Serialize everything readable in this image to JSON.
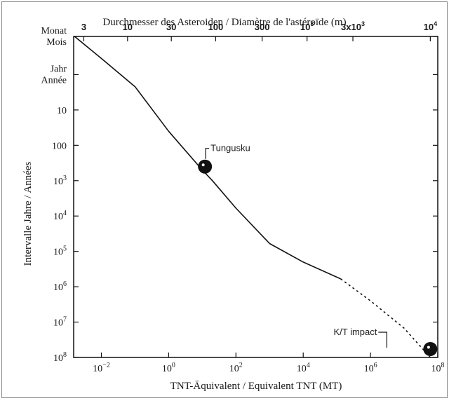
{
  "chart_data": {
    "type": "line",
    "title": "Durchmesser des Asteroiden / Diamètre de l'astéroïde (m)",
    "xlabel": "TNT-Äquivalent / Equivalent TNT (MT)",
    "ylabel": "Intervalle Jahre / Années",
    "x_scale": "log",
    "y_scale": "log",
    "xlim": [
      0.0015,
      100000000
    ],
    "ylim": [
      0.0833,
      100000000
    ],
    "x_ticks": [
      {
        "value": 0.01,
        "label": "10",
        "exp": "−2"
      },
      {
        "value": 1,
        "label": "10",
        "exp": "0"
      },
      {
        "value": 100,
        "label": "10",
        "exp": "2"
      },
      {
        "value": 10000,
        "label": "10",
        "exp": "4"
      },
      {
        "value": 1000000,
        "label": "10",
        "exp": "6"
      },
      {
        "value": 100000000,
        "label": "10",
        "exp": "8"
      }
    ],
    "y_ticks": [
      {
        "value": 0.0833,
        "label": "Monat",
        "label2": "Mois",
        "exp": ""
      },
      {
        "value": 1,
        "label": "Jahr",
        "label2": "Année",
        "exp": ""
      },
      {
        "value": 10,
        "label": "10",
        "label2": "",
        "exp": ""
      },
      {
        "value": 100,
        "label": "100",
        "label2": "",
        "exp": ""
      },
      {
        "value": 1000,
        "label": "10",
        "label2": "",
        "exp": "3"
      },
      {
        "value": 10000,
        "label": "10",
        "label2": "",
        "exp": "4"
      },
      {
        "value": 100000,
        "label": "10",
        "label2": "",
        "exp": "5"
      },
      {
        "value": 1000000,
        "label": "10",
        "label2": "",
        "exp": "6"
      },
      {
        "value": 10000000,
        "label": "10",
        "label2": "",
        "exp": "7"
      },
      {
        "value": 100000000,
        "label": "10",
        "label2": "",
        "exp": "8"
      }
    ],
    "top_axis_ticks": [
      {
        "value": 0.003,
        "label": "3",
        "exp": ""
      },
      {
        "value": 0.06,
        "label": "10",
        "exp": ""
      },
      {
        "value": 1.2,
        "label": "30",
        "exp": ""
      },
      {
        "value": 25,
        "label": "100",
        "exp": ""
      },
      {
        "value": 600,
        "label": "300",
        "exp": ""
      },
      {
        "value": 13000,
        "label": "10",
        "exp": "3"
      },
      {
        "value": 300000,
        "label": "3x10",
        "exp": "3"
      },
      {
        "value": 60000000,
        "label": "10",
        "exp": "4"
      }
    ],
    "series": [
      {
        "style": "solid",
        "x": [
          0.0016,
          0.01,
          0.1,
          1,
          10,
          20,
          100,
          1000,
          10000,
          130000
        ],
        "y": [
          0.0833,
          0.35,
          2.2,
          40,
          500,
          1000,
          6000,
          60000,
          200000,
          600000
        ]
      },
      {
        "style": "dashed",
        "x": [
          130000,
          1000000,
          10000000,
          60000000
        ],
        "y": [
          600000,
          2500000,
          15000000,
          100000000
        ]
      }
    ],
    "markers": [
      {
        "label": "Tungusku",
        "x": 12,
        "y": 400
      },
      {
        "label": "K/T impact",
        "x": 60000000,
        "y": 100000000
      }
    ],
    "grid": false
  }
}
